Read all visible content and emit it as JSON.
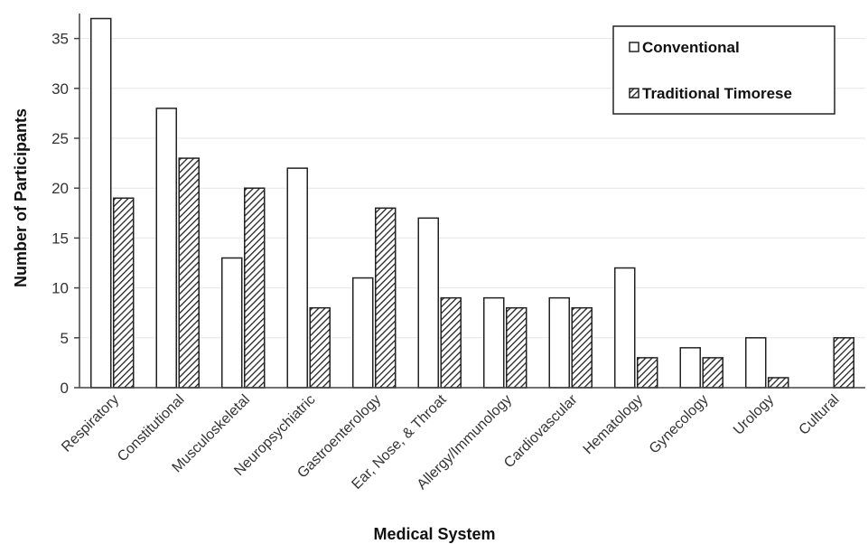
{
  "chart_data": {
    "type": "bar",
    "title": "",
    "xlabel": "Medical System",
    "ylabel": "Number of Participants",
    "ylim": [
      0,
      37.5
    ],
    "yticks": [
      0,
      5,
      10,
      15,
      20,
      25,
      30,
      35
    ],
    "grid": true,
    "legend_position": "top-right",
    "categories": [
      "Respiratory",
      "Constitutional",
      "Musculoskeletal",
      "Neuropsychiatric",
      "Gastroenterology",
      "Ear, Nose, & Throat",
      "Allergy/Immunology",
      "Cardiovascular",
      "Hematology",
      "Gynecology",
      "Urology",
      "Cultural"
    ],
    "series": [
      {
        "name": "Conventional",
        "fill": "#ffffff",
        "values": [
          37,
          28,
          13,
          22,
          11,
          17,
          9,
          9,
          12,
          4,
          5,
          0
        ]
      },
      {
        "name": "Traditional Timorese",
        "fill": "hatch",
        "values": [
          19,
          23,
          20,
          8,
          18,
          9,
          8,
          8,
          3,
          3,
          1,
          5
        ]
      }
    ]
  }
}
